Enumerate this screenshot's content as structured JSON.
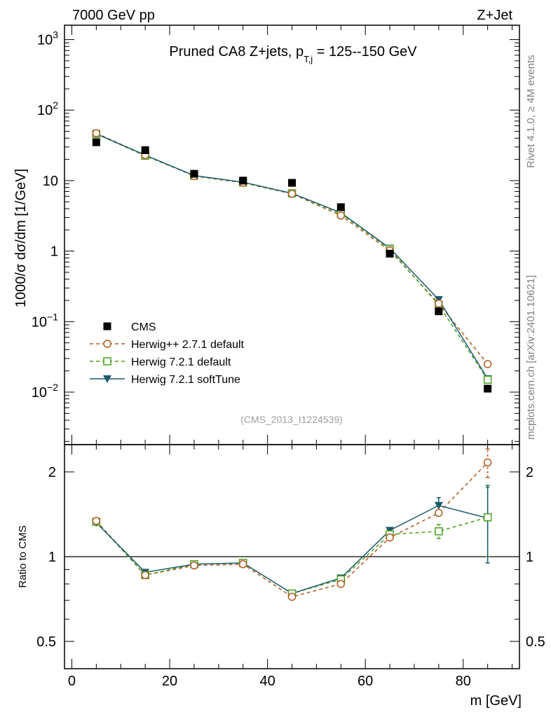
{
  "header": {
    "left": "7000 GeV pp",
    "right": "Z+Jet"
  },
  "side_labels": {
    "rivet": "Rivet 4.1.0, ≥ 4M events",
    "mcplots": "mcplots.cern.ch [arXiv:2401.10621]"
  },
  "title": {
    "main": "Pruned CA8 Z+jets, p",
    "sub": "T,j",
    "rest": " = 125--150 GeV"
  },
  "analysis_id": "(CMS_2013_I1224539)",
  "legend_position": "middle-left",
  "colors": {
    "cms": "#000000",
    "herwigpp": "#b35a1f",
    "herwig_default": "#4aa01e",
    "herwig_soft": "#1a5a6e"
  },
  "chart_data": [
    {
      "type": "line",
      "panel": "main",
      "ylabel": "1000/σ  dσ/dm [1/GeV]",
      "yscale": "log",
      "ylim": [
        0.0018,
        1600
      ],
      "xlim": [
        -1.5,
        91.5
      ],
      "y_ticks": [
        {
          "v": 0.01,
          "label": "10",
          "exp": "−2"
        },
        {
          "v": 0.1,
          "label": "10",
          "exp": "−1"
        },
        {
          "v": 1,
          "label": "1",
          "exp": ""
        },
        {
          "v": 10,
          "label": "10",
          "exp": ""
        },
        {
          "v": 100,
          "label": "10",
          "exp": "2"
        },
        {
          "v": 1000,
          "label": "10",
          "exp": "3"
        }
      ],
      "x": [
        5,
        15,
        25,
        35,
        45,
        55,
        65,
        75,
        85
      ],
      "series": [
        {
          "name": "CMS",
          "key": "cms",
          "marker": "square-filled",
          "values": [
            35,
            27,
            12.5,
            10,
            9.3,
            4.2,
            0.92,
            0.14,
            0.0112
          ]
        },
        {
          "name": "Herwig++ 2.7.1 default",
          "key": "herwigpp",
          "marker": "circle-open",
          "dash": "dashed",
          "values": [
            47,
            23,
            11.6,
            9.3,
            6.5,
            3.2,
            1.02,
            0.18,
            0.025
          ]
        },
        {
          "name": "Herwig 7.2.1 default",
          "key": "herwig_default",
          "marker": "square-open",
          "dash": "dashed",
          "values": [
            46,
            22.5,
            11.7,
            9.4,
            6.6,
            3.4,
            1.07,
            0.172,
            0.015
          ]
        },
        {
          "name": "Herwig 7.2.1 softTune",
          "key": "herwig_soft",
          "marker": "triangle-down",
          "dash": "solid",
          "values": [
            46,
            23,
            11.8,
            9.5,
            6.6,
            3.5,
            1.1,
            0.205,
            0.0155
          ]
        }
      ]
    },
    {
      "type": "line",
      "panel": "ratio",
      "ylabel": "Ratio to CMS",
      "xlabel": "m [GeV]",
      "yscale": "log",
      "ylim": [
        0.4,
        2.5
      ],
      "xlim": [
        -1.5,
        91.5
      ],
      "y_ticks": [
        {
          "v": 0.5,
          "label": "0.5"
        },
        {
          "v": 1,
          "label": "1"
        },
        {
          "v": 2,
          "label": "2"
        }
      ],
      "x_ticks": [
        0,
        20,
        40,
        60,
        80
      ],
      "x": [
        5,
        15,
        25,
        35,
        45,
        55,
        65,
        75,
        85
      ],
      "reference": 1,
      "series": [
        {
          "name": "Herwig++ 2.7.1 default",
          "key": "herwigpp",
          "marker": "circle-open",
          "dash": "dashed",
          "values": [
            1.34,
            0.86,
            0.93,
            0.94,
            0.72,
            0.8,
            1.17,
            1.43,
            2.16
          ],
          "err": [
            0,
            0,
            0,
            0,
            0,
            0,
            0,
            0,
            0.25
          ]
        },
        {
          "name": "Herwig 7.2.1 default",
          "key": "herwig_default",
          "marker": "square-open",
          "dash": "dashed",
          "values": [
            1.33,
            0.86,
            0.94,
            0.95,
            0.74,
            0.83,
            1.2,
            1.23,
            1.38
          ],
          "err": [
            0,
            0,
            0,
            0,
            0,
            0,
            0,
            0.07,
            0.38
          ]
        },
        {
          "name": "Herwig 7.2.1 softTune",
          "key": "herwig_soft",
          "marker": "triangle-down",
          "dash": "solid",
          "values": [
            1.32,
            0.88,
            0.94,
            0.95,
            0.74,
            0.84,
            1.24,
            1.52,
            1.37
          ],
          "err": [
            0,
            0,
            0,
            0,
            0,
            0,
            0,
            0.1,
            0.42
          ]
        }
      ]
    }
  ]
}
